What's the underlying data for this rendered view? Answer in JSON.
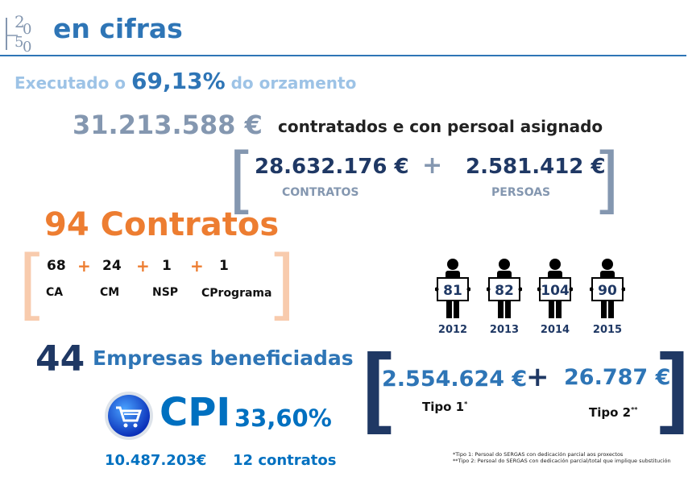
{
  "header": {
    "logo": "H2050",
    "title": "en cifras"
  },
  "execution": {
    "prefix": "Executado o",
    "percent": "69,13%",
    "suffix": "do orzamento"
  },
  "budget": {
    "total": "31.213.588 €",
    "total_label": "contratados e con persoal asignado",
    "contracts_amount": "28.632.176 €",
    "contracts_label": "CONTRATOS",
    "plus": "+",
    "people_amount": "2.581.412 €",
    "people_label": "PERSOAS"
  },
  "contracts": {
    "count": "94",
    "label": "Contratos",
    "items": [
      {
        "value": "68",
        "label": "CA"
      },
      {
        "value": "24",
        "label": "CM"
      },
      {
        "value": "1",
        "label": "NSP"
      },
      {
        "value": "1",
        "label": "CPrograma"
      }
    ]
  },
  "staff_by_year": [
    {
      "value": "81",
      "year": "2012"
    },
    {
      "value": "82",
      "year": "2013"
    },
    {
      "value": "104",
      "year": "2014"
    },
    {
      "value": "90",
      "year": "2015"
    }
  ],
  "companies": {
    "count": "44",
    "label": "Empresas beneficiadas"
  },
  "types": {
    "tipo1_amount": "2.554.624 €",
    "tipo1_label": "Tipo 1",
    "tipo1_mark": "*",
    "tipo2_amount": "26.787 €",
    "tipo2_label": "Tipo 2",
    "tipo2_mark": "**"
  },
  "cpi": {
    "icon": "shopping-cart-icon",
    "label": "CPI",
    "percent": "33,60%",
    "amount": "10.487.203€",
    "contracts": "12 contratos"
  },
  "footnotes": [
    "*Tipo 1: Persoal do SERGAS con dedicación parcial aos proxectos",
    "**Tipo 2: Persoal do SERGAS con dedicación parcial/total que implique substitución"
  ],
  "colors": {
    "title": "#2e75b6",
    "light": "#9dc3e6",
    "gray": "#8497b0",
    "navy": "#1f3864",
    "orange": "#ed7d31",
    "orange_light": "#f8cbad",
    "cpi": "#0070c0"
  }
}
